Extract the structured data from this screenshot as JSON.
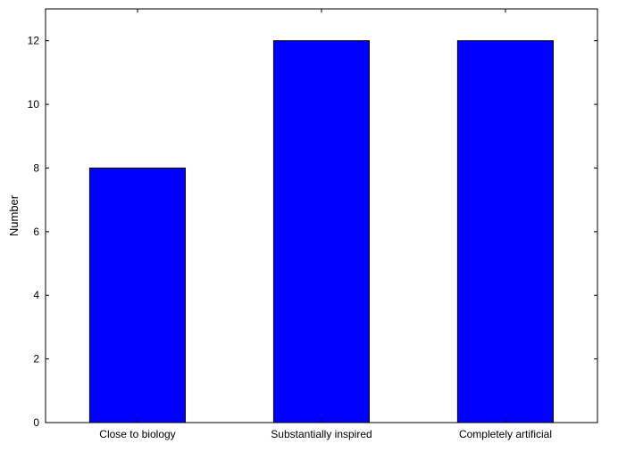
{
  "chart_data": {
    "type": "bar",
    "categories": [
      "Close to biology",
      "Substantially inspired",
      "Completely artificial"
    ],
    "values": [
      8,
      12,
      12
    ],
    "title": "",
    "xlabel": "",
    "ylabel": "Number",
    "ylim": [
      0,
      13
    ],
    "yticks": [
      0,
      2,
      4,
      6,
      8,
      10,
      12
    ],
    "grid": false,
    "bar_color": "#0000ff",
    "edge_color": "#000000"
  }
}
